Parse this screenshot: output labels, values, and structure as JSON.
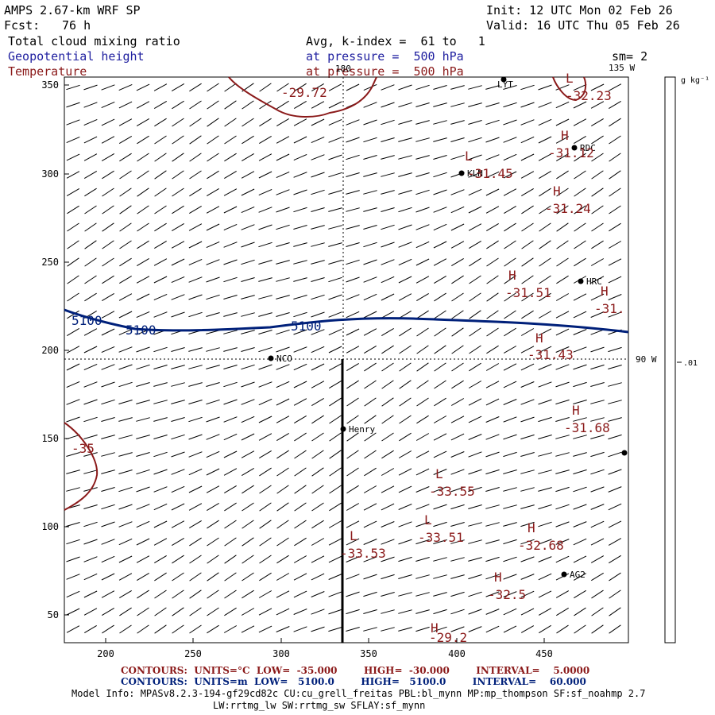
{
  "header": {
    "model": "AMPS 2.67-km WRF SP",
    "init": "Init: 12 UTC Mon 02 Feb 26",
    "fcst_label": "Fcst:",
    "fcst_value": "76 h",
    "valid": "Valid: 16 UTC Thu 05 Feb 26",
    "field1": "Total cloud mixing ratio",
    "field1_detail": "Avg, k-index =  61 to   1",
    "field2": "Geopotential height",
    "field2_detail": "at pressure =  500 hPa",
    "field3": "Temperature",
    "field3_detail": "at pressure =  500 hPa",
    "smoothing": "sm= 2"
  },
  "map": {
    "x_ticks": [
      "200",
      "250",
      "300",
      "350",
      "400",
      "450"
    ],
    "y_ticks": [
      "350",
      "300",
      "250",
      "200",
      "150",
      "100",
      "50"
    ],
    "lon_top_label": "180",
    "lon_top_right_label": "135 W",
    "lon_right_label": "90 W",
    "stations": [
      {
        "name": "LYT"
      },
      {
        "name": "RDC"
      },
      {
        "name": "KLN"
      },
      {
        "name": "HRC"
      },
      {
        "name": "NCO"
      },
      {
        "name": "Henry"
      },
      {
        "name": "AG2"
      }
    ],
    "height_labels": [
      "5100",
      "5100",
      "5100"
    ],
    "temp_labels": [
      "-29.72",
      "-32.23",
      "-31.12",
      "-31.45",
      "-31.24",
      "-31.51",
      "-31.",
      "-31.43",
      "-31.68",
      "-35",
      "-33.55",
      "-33.51",
      "-33.53",
      "-32.68",
      "-32.5",
      "-29.2"
    ],
    "hl_markers": [
      "L",
      "H",
      "L",
      "H",
      "H",
      "H",
      "H",
      "H",
      "L",
      "L",
      "L",
      "H",
      "H",
      "H"
    ],
    "colors": {
      "height": "#00207a",
      "temperature": "#8b1a1a",
      "station": "#000000"
    }
  },
  "colorbar": {
    "units": "g kg⁻¹",
    "value": ".01"
  },
  "footer": {
    "temp_contours": "CONTOURS:  UNITS=°C  LOW=  -35.000        HIGH=  -30.000        INTERVAL=    5.0000",
    "height_contours": "CONTOURS:  UNITS=m  LOW=   5100.0        HIGH=   5100.0        INTERVAL=    60.000",
    "model_info_1": "Model Info: MPASv8.2.3-194-gf29cd82c CU:cu_grell_freitas PBL:bl_mynn MP:mp_thompson SF:sf_noahmp 2.7",
    "model_info_2": "LW:rrtmg_lw SW:rrtmg_sw SFLAY:sf_mynn"
  }
}
